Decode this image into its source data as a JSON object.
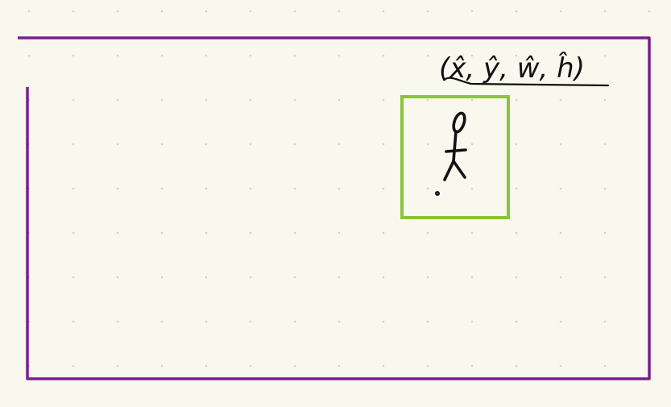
{
  "diagram": {
    "label_text": "(x̂, ŷ, ŵ, ĥ)",
    "colors": {
      "background": "#f9f8ee",
      "grid_dot": "#cfd1cc",
      "outer_frame": "#7a1e8f",
      "bounding_box": "#8ac43a",
      "ink": "#111111"
    },
    "icons": {
      "figure": "stick-figure-icon"
    }
  }
}
